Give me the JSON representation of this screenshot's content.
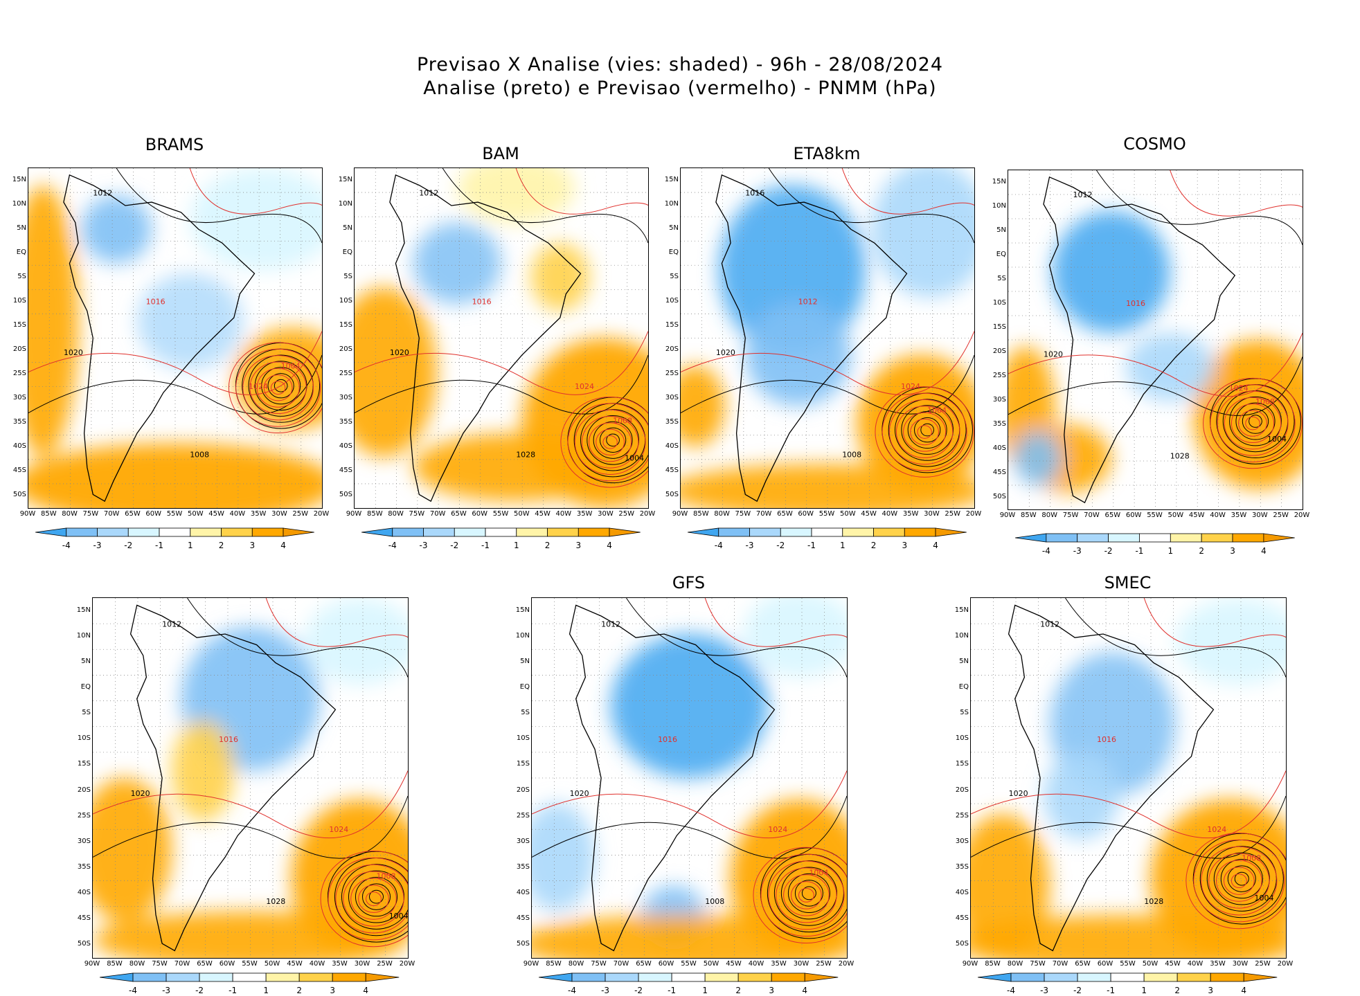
{
  "header": {
    "line1": "Previsao X Analise (vies: shaded) - 96h - 28/08/2024",
    "line2": "Analise (preto) e Previsao (vermelho) - PNMM (hPa)"
  },
  "axes": {
    "lat_labels": [
      "15N",
      "10N",
      "5N",
      "EQ",
      "5S",
      "10S",
      "15S",
      "20S",
      "25S",
      "30S",
      "35S",
      "40S",
      "45S",
      "50S"
    ],
    "lon_labels": [
      "90W",
      "85W",
      "80W",
      "75W",
      "70W",
      "65W",
      "60W",
      "55W",
      "50W",
      "45W",
      "40W",
      "35W",
      "30W",
      "25W",
      "20W"
    ]
  },
  "colorbar": {
    "labels": [
      "-4",
      "-3",
      "-2",
      "-1",
      "1",
      "2",
      "3",
      "4"
    ],
    "colors": [
      "#3fa6f0",
      "#7fc0f5",
      "#aad8fb",
      "#d8f6ff",
      "#ffffff",
      "#fff4a8",
      "#ffd24a",
      "#ffa800",
      "#f59a00"
    ]
  },
  "colors": {
    "analysis_contour": "#000000",
    "forecast_contour": "#e0302c",
    "land_border": "#000000"
  },
  "panels": [
    {
      "name": "BRAMS",
      "label": "BRAMS",
      "contour_labels": [
        "1012",
        "1016",
        "1020",
        "1024",
        "1008",
        "1004"
      ]
    },
    {
      "name": "BAM",
      "label": "BAM",
      "contour_labels": [
        "1012",
        "1016",
        "1020",
        "1024",
        "1028",
        "1008",
        "1004"
      ]
    },
    {
      "name": "ETA8km",
      "label": "ETA8km",
      "contour_labels": [
        "1016",
        "1012",
        "1020",
        "1024",
        "1008",
        "1004"
      ]
    },
    {
      "name": "COSMO",
      "label": "COSMO",
      "contour_labels": [
        "1012",
        "1016",
        "1020",
        "1024",
        "1028",
        "1008",
        "1004"
      ]
    },
    {
      "name": "unlabeled",
      "label": "",
      "contour_labels": [
        "1012",
        "1016",
        "1020",
        "1024",
        "1028",
        "1008",
        "1004"
      ]
    },
    {
      "name": "GFS",
      "label": "GFS",
      "contour_labels": [
        "1012",
        "1016",
        "1020",
        "1024",
        "1008",
        "1004"
      ]
    },
    {
      "name": "SMEC",
      "label": "SMEC",
      "contour_labels": [
        "1012",
        "1016",
        "1020",
        "1024",
        "1028",
        "1008",
        "1004"
      ]
    }
  ]
}
